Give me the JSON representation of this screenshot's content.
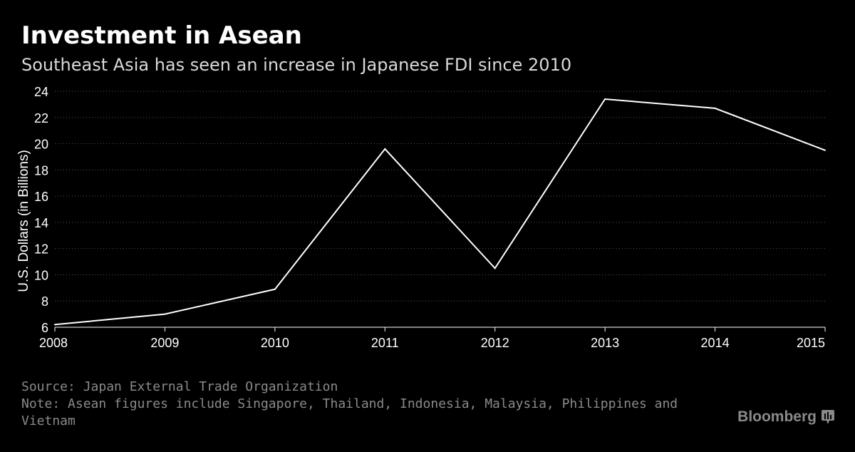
{
  "header": {
    "title": "Investment in Asean",
    "subtitle": "Southeast Asia has seen an increase in Japanese FDI since 2010"
  },
  "footer": {
    "source": "Source: Japan External Trade Organization",
    "note": "Note: Asean figures include Singapore, Thailand, Indonesia, Malaysia, Philippines and Vietnam"
  },
  "brand": {
    "name": "Bloomberg",
    "icon": "bloomberg-terminal-icon"
  },
  "colors": {
    "background": "#000000",
    "line": "#ffffff",
    "grid": "#555555",
    "muted_text": "#8a8a8a"
  },
  "chart_data": {
    "type": "line",
    "title": "Investment in Asean",
    "subtitle": "Southeast Asia has seen an increase in Japanese FDI since 2010",
    "xlabel": "",
    "ylabel": "U.S. Dollars (in Billions)",
    "x": [
      "2008",
      "2009",
      "2010",
      "2011",
      "2012",
      "2013",
      "2014",
      "2015"
    ],
    "series": [
      {
        "values": [
          6.2,
          7.0,
          8.9,
          19.6,
          10.5,
          23.4,
          22.7,
          19.5
        ]
      }
    ],
    "ylim": [
      6,
      24
    ],
    "yticks": [
      "6",
      "8",
      "10",
      "12",
      "14",
      "16",
      "18",
      "20",
      "22",
      "24"
    ],
    "xticks": [
      "2008",
      "2009",
      "2010",
      "2011",
      "2012",
      "2013",
      "2014",
      "2015"
    ],
    "grid": "horizontal dotted",
    "legend": "none"
  }
}
